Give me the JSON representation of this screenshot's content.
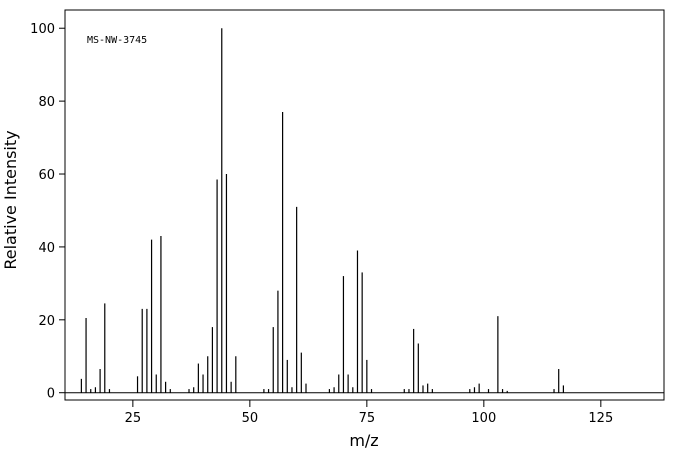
{
  "chart_data": {
    "type": "bar",
    "annotation": "MS-NW-3745",
    "xlabel": "m/z",
    "ylabel": "Relative Intensity",
    "x": [
      14,
      15,
      16,
      17,
      18,
      19,
      20,
      26,
      27,
      28,
      29,
      30,
      31,
      32,
      33,
      37,
      38,
      39,
      40,
      41,
      42,
      43,
      44,
      45,
      46,
      47,
      53,
      54,
      55,
      56,
      57,
      58,
      59,
      60,
      61,
      62,
      67,
      68,
      69,
      70,
      71,
      72,
      73,
      74,
      75,
      76,
      83,
      84,
      85,
      86,
      87,
      88,
      89,
      97,
      98,
      99,
      101,
      103,
      104,
      105,
      115,
      116,
      117
    ],
    "values": [
      3.8,
      20.5,
      1,
      1.5,
      6.5,
      24.5,
      1,
      4.5,
      23,
      23,
      42,
      5,
      43,
      3,
      1,
      1,
      1.5,
      8,
      5,
      10,
      18,
      58.5,
      100,
      60,
      3,
      10,
      1,
      1,
      18,
      28,
      77,
      9,
      1.5,
      51,
      11,
      2.5,
      1,
      1.5,
      5,
      32,
      5,
      1.5,
      39,
      33,
      9,
      1,
      1,
      1,
      17.5,
      13.5,
      2,
      2.5,
      1,
      1,
      1.5,
      2.5,
      1,
      21,
      1,
      0.5,
      1,
      6.5,
      2
    ],
    "color": "#000000",
    "xlim": [
      10.5,
      138.5
    ],
    "ylim": [
      -2,
      105
    ],
    "xticks": [
      25,
      50,
      75,
      100,
      125
    ],
    "yticks": [
      0,
      20,
      40,
      60,
      80,
      100
    ]
  }
}
